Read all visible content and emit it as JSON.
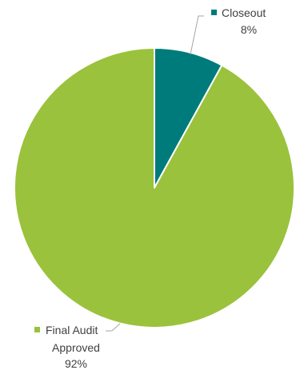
{
  "chart_data": {
    "type": "pie",
    "slices": [
      {
        "label": "Closeout",
        "value": 8,
        "value_label": "8%",
        "color": "#007b7b"
      },
      {
        "label": "Final Audit Approved",
        "label_lines": [
          "Final Audit",
          "Approved"
        ],
        "value": 92,
        "value_label": "92%",
        "color": "#9ac23c"
      }
    ],
    "start_angle": "12 o'clock",
    "direction": "clockwise",
    "legend": "none",
    "data_labels": "outside with leader lines"
  }
}
